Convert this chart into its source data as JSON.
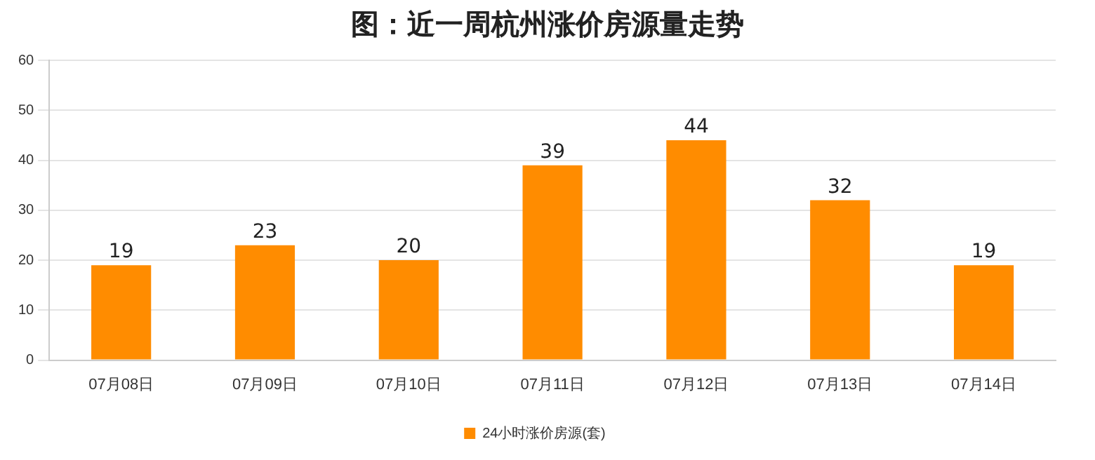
{
  "chart_data": {
    "type": "bar",
    "title": "图：近一周杭州涨价房源量走势",
    "categories": [
      "07月08日",
      "07月09日",
      "07月10日",
      "07月11日",
      "07月12日",
      "07月13日",
      "07月14日"
    ],
    "series": [
      {
        "name": "24小时涨价房源(套)",
        "color": "#ff8c00",
        "values": [
          19,
          23,
          20,
          39,
          44,
          32,
          19
        ]
      }
    ],
    "ylim": [
      0,
      60
    ],
    "yticks": [
      0,
      10,
      20,
      30,
      40,
      50,
      60
    ],
    "grid": "y",
    "legend": "bottom",
    "data_labels": true
  }
}
